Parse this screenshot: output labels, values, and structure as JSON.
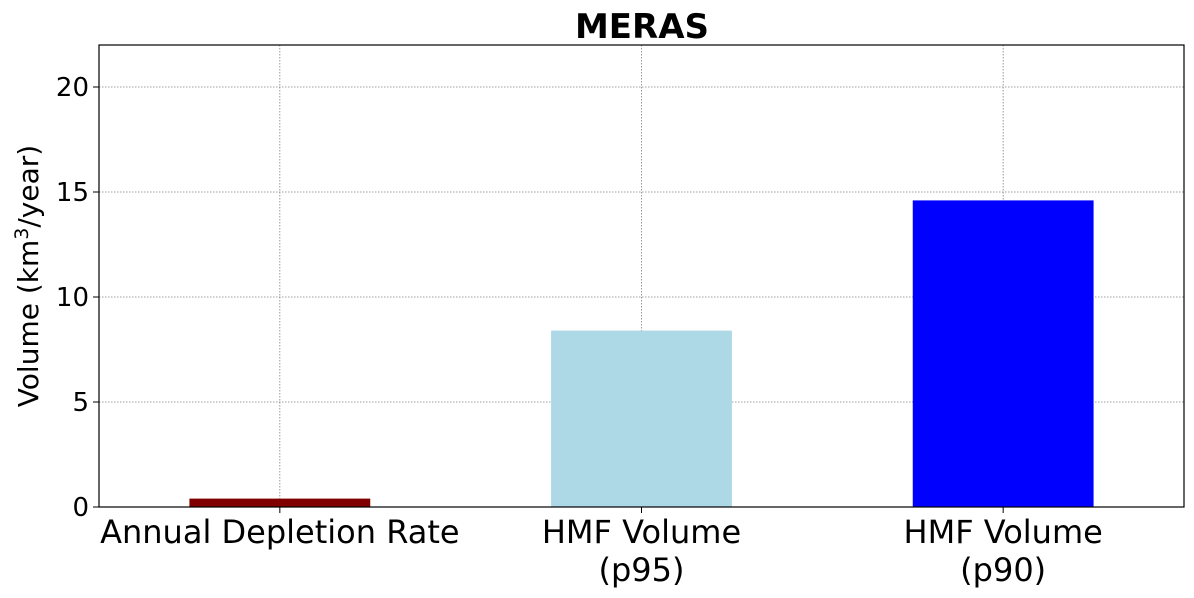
{
  "chart_data": {
    "type": "bar",
    "title": "MERAS",
    "ylabel": "Volume (km³/year)",
    "xlabel": "",
    "categories": [
      "Annual Depletion Rate",
      "HMF Volume\n(p95)",
      "HMF Volume\n(p90)"
    ],
    "values": [
      0.4,
      8.4,
      14.6
    ],
    "colors": [
      "#800000",
      "#add8e6",
      "#0000ff"
    ],
    "ylim": [
      0,
      22
    ],
    "yticks": [
      0,
      5,
      10,
      15,
      20
    ],
    "grid": true
  }
}
